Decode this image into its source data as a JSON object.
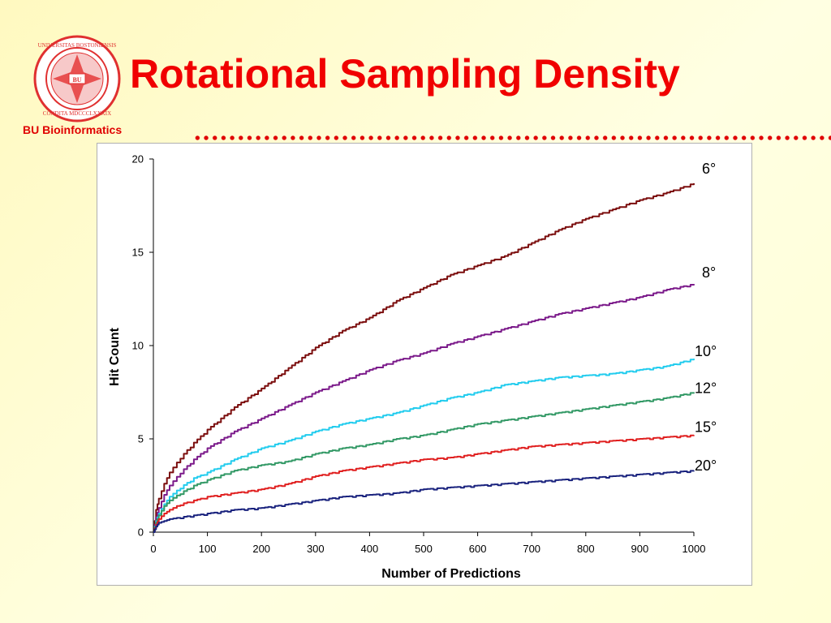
{
  "header": {
    "title": "Rotational Sampling Density",
    "organization": "BU Bioinformatics",
    "seal_text": "UNIVERSITAS BOSTONIENSIS • CONDITA MDCCCLXXXIX"
  },
  "colors": {
    "title": "#f00000",
    "accent": "#e00000"
  },
  "chart_data": {
    "type": "line",
    "title": "",
    "xlabel": "Number of Predictions",
    "ylabel": "Hit Count",
    "xlim": [
      0,
      1000
    ],
    "ylim": [
      0,
      20
    ],
    "x_ticks": [
      0,
      100,
      200,
      300,
      400,
      500,
      600,
      700,
      800,
      900,
      1000
    ],
    "y_ticks": [
      0,
      5,
      10,
      15,
      20
    ],
    "grid": false,
    "legend": "inline labels at right end of each line",
    "x": [
      0,
      5,
      10,
      20,
      30,
      50,
      75,
      100,
      150,
      200,
      250,
      300,
      350,
      400,
      450,
      500,
      550,
      600,
      650,
      700,
      750,
      800,
      850,
      900,
      950,
      1000
    ],
    "series": [
      {
        "name": "6°",
        "color": "#7b0d0d",
        "values": [
          0,
          1.2,
          1.8,
          2.6,
          3.2,
          4.0,
          4.8,
          5.5,
          6.7,
          7.7,
          8.8,
          9.9,
          10.8,
          11.5,
          12.4,
          13.1,
          13.8,
          14.3,
          14.8,
          15.5,
          16.2,
          16.8,
          17.3,
          17.8,
          18.2,
          18.7
        ]
      },
      {
        "name": "8°",
        "color": "#7b1a8a",
        "values": [
          0,
          0.8,
          1.3,
          2.0,
          2.5,
          3.2,
          3.9,
          4.5,
          5.4,
          6.1,
          6.8,
          7.5,
          8.1,
          8.7,
          9.2,
          9.6,
          10.1,
          10.5,
          10.9,
          11.3,
          11.7,
          12.0,
          12.3,
          12.6,
          13.0,
          13.3
        ]
      },
      {
        "name": "10°",
        "color": "#22ccee",
        "values": [
          0,
          0.6,
          1.0,
          1.5,
          1.9,
          2.4,
          2.9,
          3.2,
          3.9,
          4.5,
          4.9,
          5.4,
          5.8,
          6.1,
          6.4,
          6.8,
          7.2,
          7.5,
          7.9,
          8.1,
          8.3,
          8.4,
          8.5,
          8.7,
          8.9,
          9.3
        ]
      },
      {
        "name": "12°",
        "color": "#339966",
        "values": [
          0,
          0.5,
          0.9,
          1.4,
          1.7,
          2.1,
          2.5,
          2.8,
          3.3,
          3.6,
          3.8,
          4.2,
          4.5,
          4.7,
          5.0,
          5.2,
          5.5,
          5.8,
          6.0,
          6.2,
          6.4,
          6.6,
          6.8,
          7.0,
          7.2,
          7.5
        ]
      },
      {
        "name": "15°",
        "color": "#e02020",
        "values": [
          0,
          0.4,
          0.7,
          1.0,
          1.2,
          1.5,
          1.7,
          1.9,
          2.1,
          2.3,
          2.6,
          3.0,
          3.3,
          3.5,
          3.7,
          3.9,
          4.0,
          4.2,
          4.4,
          4.6,
          4.7,
          4.8,
          4.9,
          5.0,
          5.1,
          5.2
        ]
      },
      {
        "name": "20°",
        "color": "#1a237e",
        "values": [
          0,
          0.3,
          0.5,
          0.6,
          0.7,
          0.8,
          0.9,
          1.0,
          1.2,
          1.3,
          1.5,
          1.7,
          1.9,
          2.0,
          2.1,
          2.3,
          2.4,
          2.5,
          2.6,
          2.7,
          2.8,
          2.9,
          3.0,
          3.1,
          3.2,
          3.3
        ]
      }
    ]
  }
}
